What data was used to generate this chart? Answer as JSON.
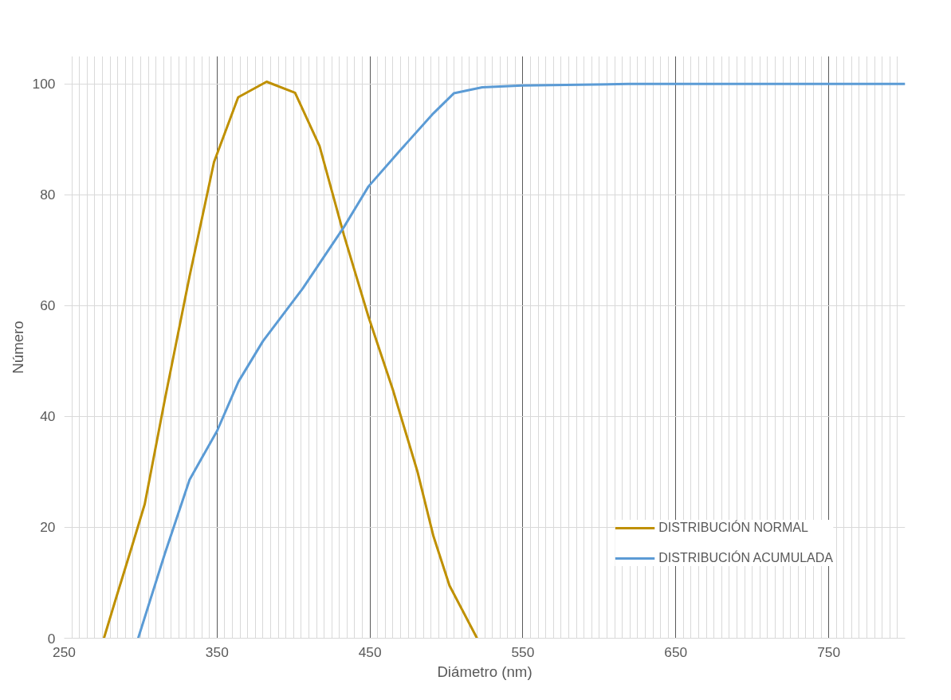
{
  "chart_data": {
    "type": "line",
    "xlabel": "Diámetro (nm)",
    "ylabel": "Número",
    "xlim": [
      250,
      800
    ],
    "ylim": [
      0,
      105
    ],
    "xticks": [
      250,
      350,
      450,
      550,
      650,
      750
    ],
    "yticks": [
      0,
      20,
      40,
      60,
      80,
      100
    ],
    "grid": true,
    "legend": "bottom right",
    "line_style": "solid",
    "marker": "none",
    "series": [
      {
        "name": "DISTRIBUCIÓN NORMAL",
        "color": "#bf9000",
        "x": [
          276,
          284,
          294.7,
          302.7,
          316,
          332,
          348,
          363.8,
          382.4,
          401,
          417,
          433,
          449,
          465,
          481,
          491.5,
          502,
          520
        ],
        "values": [
          0,
          7.3,
          16.9,
          24.2,
          43.3,
          65.3,
          85.9,
          97.6,
          100.4,
          98.4,
          88.8,
          72.7,
          58,
          44.8,
          30.1,
          18.4,
          9.5,
          0
        ]
      },
      {
        "name": "DISTRIBUCIÓN ACUMULADA",
        "color": "#5b9bd5",
        "x": [
          298.4,
          316,
          332,
          350,
          364,
          380,
          406,
          433,
          449,
          470,
          491.5,
          504.8,
          523.4,
          549.5,
          619,
          800
        ],
        "values": [
          0,
          15.4,
          28.6,
          37.4,
          46.3,
          53.6,
          63.1,
          74.2,
          81.5,
          88.1,
          94.7,
          98.3,
          99.4,
          99.7,
          100,
          100
        ]
      }
    ]
  }
}
